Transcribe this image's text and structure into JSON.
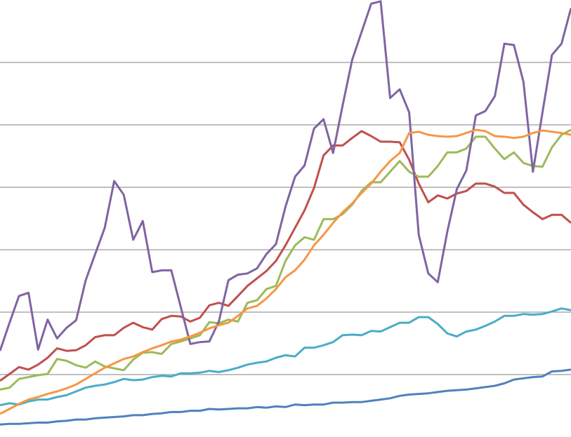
{
  "chart_data": {
    "type": "line",
    "categories": [
      null,
      null,
      null,
      null,
      null,
      null,
      null,
      null,
      null,
      null,
      null,
      null,
      null,
      null,
      null,
      null,
      null,
      null,
      null,
      null,
      null,
      null,
      null,
      null,
      null,
      null,
      null,
      null,
      null,
      null,
      null,
      null,
      null,
      null,
      null,
      null,
      null,
      null,
      null,
      null,
      null,
      null,
      null,
      null,
      null,
      null,
      null,
      null,
      null,
      null,
      null,
      null,
      null,
      null,
      null,
      null,
      null,
      null,
      null,
      null,
      null
    ],
    "ylim": [
      0,
      7
    ],
    "yticks": [
      1,
      2,
      3,
      4,
      5,
      6
    ],
    "grid": true,
    "series": [
      {
        "color": "#4f81bd",
        "values": [
          0.2,
          0.21,
          0.21,
          0.22,
          0.23,
          0.23,
          0.25,
          0.26,
          0.28,
          0.28,
          0.3,
          0.31,
          0.32,
          0.33,
          0.35,
          0.35,
          0.37,
          0.38,
          0.4,
          0.4,
          0.42,
          0.42,
          0.45,
          0.44,
          0.45,
          0.46,
          0.46,
          0.48,
          0.47,
          0.49,
          0.48,
          0.52,
          0.51,
          0.52,
          0.52,
          0.55,
          0.55,
          0.56,
          0.56,
          0.58,
          0.6,
          0.62,
          0.66,
          0.68,
          0.69,
          0.7,
          0.72,
          0.74,
          0.75,
          0.76,
          0.78,
          0.8,
          0.82,
          0.86,
          0.92,
          0.94,
          0.96,
          0.97,
          1.05,
          1.06,
          1.08
        ]
      },
      {
        "color": "#c0504d",
        "values": [
          0.9,
          1.01,
          1.12,
          1.08,
          1.16,
          1.27,
          1.42,
          1.38,
          1.39,
          1.47,
          1.6,
          1.63,
          1.63,
          1.75,
          1.83,
          1.76,
          1.72,
          1.89,
          1.94,
          1.93,
          1.85,
          1.91,
          2.11,
          2.15,
          2.1,
          2.26,
          2.42,
          2.54,
          2.66,
          2.82,
          3.07,
          3.35,
          3.63,
          3.99,
          4.51,
          4.67,
          4.67,
          4.79,
          4.9,
          4.82,
          4.73,
          4.73,
          4.72,
          4.44,
          4.06,
          3.76,
          3.87,
          3.82,
          3.9,
          3.94,
          4.06,
          4.06,
          4.01,
          3.91,
          3.91,
          3.72,
          3.6,
          3.49,
          3.56,
          3.56,
          3.43
        ]
      },
      {
        "color": "#9bbb59",
        "values": [
          0.76,
          0.79,
          0.93,
          0.96,
          0.99,
          1.01,
          1.25,
          1.22,
          1.15,
          1.11,
          1.21,
          1.13,
          1.1,
          1.07,
          1.24,
          1.35,
          1.36,
          1.33,
          1.49,
          1.53,
          1.58,
          1.63,
          1.84,
          1.82,
          1.88,
          1.85,
          2.15,
          2.19,
          2.37,
          2.42,
          2.82,
          3.07,
          3.2,
          3.16,
          3.49,
          3.49,
          3.57,
          3.72,
          3.94,
          4.08,
          4.08,
          4.25,
          4.42,
          4.25,
          4.17,
          4.17,
          4.34,
          4.56,
          4.56,
          4.62,
          4.81,
          4.81,
          4.62,
          4.45,
          4.56,
          4.39,
          4.34,
          4.33,
          4.64,
          4.84,
          4.92
        ]
      },
      {
        "color": "#8064a2",
        "values": [
          1.38,
          1.83,
          2.26,
          2.31,
          1.4,
          1.88,
          1.58,
          1.75,
          1.87,
          2.51,
          2.93,
          3.35,
          4.1,
          3.88,
          3.16,
          3.46,
          2.64,
          2.67,
          2.67,
          2.08,
          1.49,
          1.52,
          1.53,
          1.85,
          2.51,
          2.6,
          2.62,
          2.7,
          2.93,
          3.09,
          3.69,
          4.17,
          4.35,
          4.94,
          5.09,
          4.55,
          5.31,
          6.04,
          6.49,
          6.94,
          6.98,
          5.43,
          5.57,
          5.2,
          3.24,
          2.62,
          2.48,
          3.29,
          3.97,
          4.27,
          5.15,
          5.22,
          5.46,
          6.3,
          6.28,
          5.69,
          4.25,
          5.2,
          6.12,
          6.3,
          6.87
        ]
      },
      {
        "color": "#4bacc6",
        "values": [
          0.51,
          0.54,
          0.52,
          0.57,
          0.6,
          0.6,
          0.64,
          0.67,
          0.73,
          0.79,
          0.82,
          0.84,
          0.88,
          0.93,
          0.91,
          0.92,
          0.96,
          0.98,
          0.97,
          1.02,
          1.02,
          1.03,
          1.06,
          1.04,
          1.07,
          1.11,
          1.16,
          1.19,
          1.21,
          1.27,
          1.31,
          1.29,
          1.43,
          1.43,
          1.47,
          1.52,
          1.63,
          1.64,
          1.63,
          1.7,
          1.69,
          1.76,
          1.83,
          1.83,
          1.92,
          1.92,
          1.81,
          1.66,
          1.61,
          1.69,
          1.72,
          1.78,
          1.85,
          1.94,
          1.94,
          1.97,
          1.96,
          1.97,
          2.01,
          2.06,
          2.03
        ]
      },
      {
        "color": "#f79646",
        "values": [
          0.37,
          0.45,
          0.53,
          0.6,
          0.64,
          0.69,
          0.73,
          0.78,
          0.84,
          0.93,
          1.02,
          1.11,
          1.18,
          1.25,
          1.29,
          1.36,
          1.42,
          1.47,
          1.53,
          1.56,
          1.61,
          1.67,
          1.74,
          1.79,
          1.83,
          1.94,
          2.06,
          2.1,
          2.22,
          2.37,
          2.56,
          2.67,
          2.84,
          3.07,
          3.24,
          3.43,
          3.6,
          3.74,
          3.91,
          4.06,
          4.25,
          4.42,
          4.55,
          4.87,
          4.89,
          4.84,
          4.82,
          4.81,
          4.82,
          4.87,
          4.92,
          4.9,
          4.82,
          4.81,
          4.79,
          4.81,
          4.87,
          4.91,
          4.89,
          4.87,
          4.84
        ]
      }
    ]
  }
}
